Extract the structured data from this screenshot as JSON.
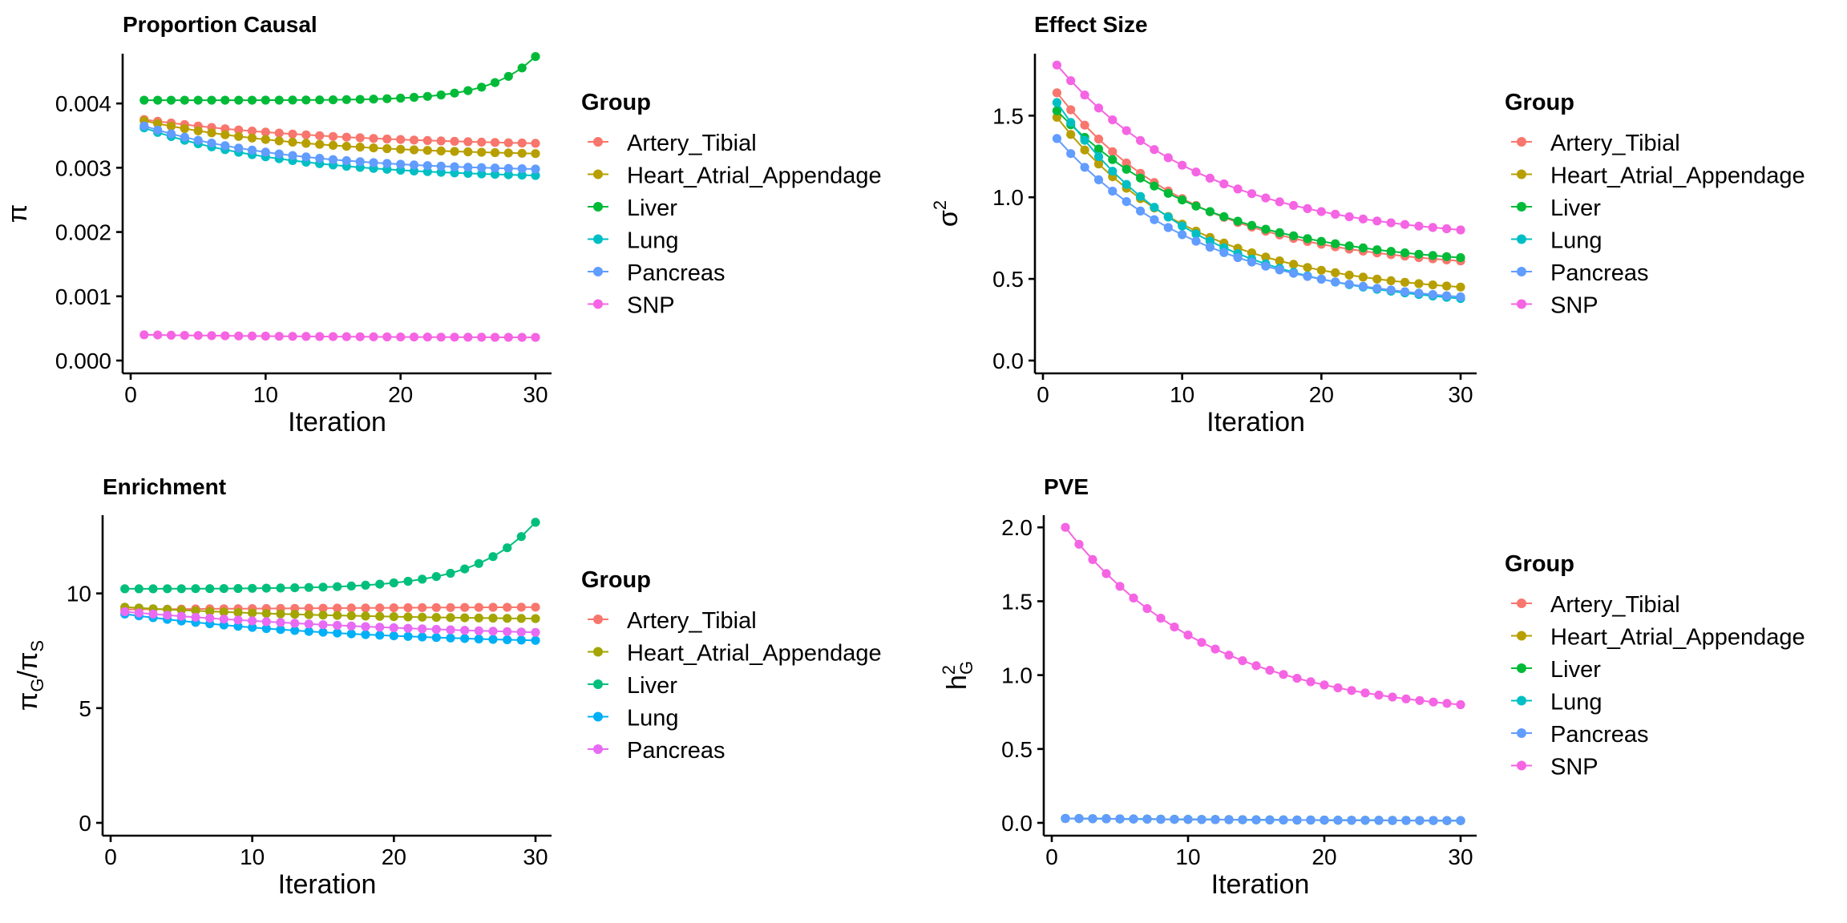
{
  "chart_data": [
    {
      "type": "line",
      "title": "Proportion Causal",
      "xlabel": "Iteration",
      "ylabel": "π",
      "xlim": [
        0,
        30
      ],
      "ylim": [
        0,
        0.0047
      ],
      "xticks": [
        "0",
        "10",
        "20",
        "30"
      ],
      "yticks": [
        "0.000",
        "0.001",
        "0.002",
        "0.003",
        "0.004"
      ],
      "legend_title": "Group",
      "legend_position": "right",
      "series": [
        {
          "name": "Artery_Tibial",
          "color": "#F8766D",
          "start": 0.00375,
          "end": 0.00338,
          "curve": 0.18
        },
        {
          "name": "Heart_Atrial_Appendage",
          "color": "#B79F00",
          "start": 0.00373,
          "end": 0.00322,
          "curve": 0.15
        },
        {
          "name": "Liver",
          "color": "#00BA38",
          "start": 0.00405,
          "end": 0.00473,
          "curve": -0.04
        },
        {
          "name": "Lung",
          "color": "#00BFC4",
          "start": 0.00362,
          "end": 0.00288,
          "curve": 0.13
        },
        {
          "name": "Pancreas",
          "color": "#619CFF",
          "start": 0.00365,
          "end": 0.00298,
          "curve": 0.13
        },
        {
          "name": "SNP",
          "color": "#F564E3",
          "start": 0.0004,
          "end": 0.00036,
          "curve": 0.2
        }
      ]
    },
    {
      "type": "line",
      "title": "Effect Size",
      "xlabel": "Iteration",
      "ylabel": "σ2",
      "xlim": [
        0,
        30
      ],
      "ylim": [
        0,
        1.85
      ],
      "xticks": [
        "0",
        "10",
        "20",
        "30"
      ],
      "yticks": [
        "0.0",
        "0.5",
        "1.0",
        "1.5"
      ],
      "legend_title": "Group",
      "legend_position": "right",
      "series": [
        {
          "name": "Artery_Tibial",
          "color": "#F8766D",
          "start": 1.64,
          "end": 0.61,
          "curve": 0.12
        },
        {
          "name": "Heart_Atrial_Appendage",
          "color": "#B79F00",
          "start": 1.49,
          "end": 0.45,
          "curve": 0.12
        },
        {
          "name": "Liver",
          "color": "#00BA38",
          "start": 1.53,
          "end": 0.63,
          "curve": 0.13
        },
        {
          "name": "Lung",
          "color": "#00BFC4",
          "start": 1.58,
          "end": 0.38,
          "curve": 0.12
        },
        {
          "name": "Pancreas",
          "color": "#619CFF",
          "start": 1.36,
          "end": 0.39,
          "curve": 0.13
        },
        {
          "name": "SNP",
          "color": "#F564E3",
          "start": 1.81,
          "end": 0.8,
          "curve": 0.13
        }
      ]
    },
    {
      "type": "line",
      "title": "Enrichment",
      "xlabel": "Iteration",
      "ylabel": "πG/πS",
      "xlim": [
        0,
        30
      ],
      "ylim": [
        0,
        13.2
      ],
      "xticks": [
        "0",
        "10",
        "20",
        "30"
      ],
      "yticks": [
        "0",
        "5",
        "10"
      ],
      "legend_title": "Group",
      "legend_position": "right",
      "series": [
        {
          "name": "Artery_Tibial",
          "color": "#F8766D",
          "start": 9.3,
          "end": 9.4,
          "curve": 0.5
        },
        {
          "name": "Heart_Atrial_Appendage",
          "color": "#A3A500",
          "start": 9.4,
          "end": 8.9,
          "curve": 0.2
        },
        {
          "name": "Liver",
          "color": "#00BF7D",
          "start": 10.2,
          "end": 13.1,
          "curve": -0.05
        },
        {
          "name": "Lung",
          "color": "#00B0F6",
          "start": 9.1,
          "end": 7.95,
          "curve": 0.2
        },
        {
          "name": "Pancreas",
          "color": "#E76BF3",
          "start": 9.2,
          "end": 8.3,
          "curve": 0.3
        }
      ]
    },
    {
      "type": "line",
      "title": "PVE",
      "xlabel": "Iteration",
      "ylabel": "h2G",
      "xlim": [
        0,
        30
      ],
      "ylim": [
        0,
        2.05
      ],
      "xticks": [
        "0",
        "10",
        "20",
        "30"
      ],
      "yticks": [
        "0.0",
        "0.5",
        "1.0",
        "1.5",
        "2.0"
      ],
      "legend_title": "Group",
      "legend_position": "right",
      "series": [
        {
          "name": "Artery_Tibial",
          "color": "#F8766D",
          "start": 0.03,
          "end": 0.015,
          "curve": 0.3
        },
        {
          "name": "Heart_Atrial_Appendage",
          "color": "#B79F00",
          "start": 0.03,
          "end": 0.015,
          "curve": 0.3
        },
        {
          "name": "Liver",
          "color": "#00BA38",
          "start": 0.03,
          "end": 0.015,
          "curve": 0.3
        },
        {
          "name": "Lung",
          "color": "#00BFC4",
          "start": 0.03,
          "end": 0.015,
          "curve": 0.3
        },
        {
          "name": "Pancreas",
          "color": "#619CFF",
          "start": 0.03,
          "end": 0.015,
          "curve": 0.3
        },
        {
          "name": "SNP",
          "color": "#F564E3",
          "start": 2.0,
          "end": 0.8,
          "curve": 0.13
        }
      ]
    }
  ]
}
